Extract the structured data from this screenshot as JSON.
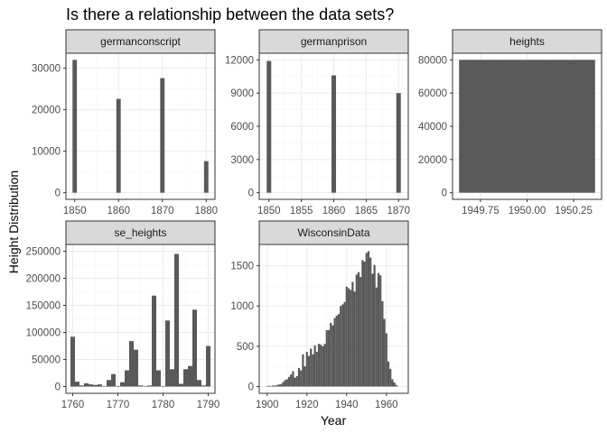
{
  "chart_data": {
    "type": "bar",
    "title": "Is there a relationship between the data sets?",
    "xlabel": "Year",
    "ylabel": "Height Distribution",
    "colors": {
      "bar": "#595959",
      "panel_border": "#333333",
      "strip_fill": "#d9d9d9",
      "grid_major": "#ebebeb",
      "grid_minor": "#f5f5f5"
    },
    "panels": [
      {
        "name": "germanconscript",
        "xlim": [
          1848,
          1882
        ],
        "ylim": [
          -1600,
          33600
        ],
        "x_ticks": [
          1850,
          1860,
          1870,
          1880
        ],
        "x_tick_labels": [
          "1850",
          "1860",
          "1870",
          "1880"
        ],
        "y_ticks": [
          0,
          10000,
          20000,
          30000
        ],
        "y_tick_labels": [
          "0",
          "10000",
          "20000",
          "30000"
        ],
        "bin_width": 1,
        "x": [
          1850,
          1860,
          1870,
          1880
        ],
        "values": [
          32000,
          22600,
          27600,
          7600
        ]
      },
      {
        "name": "germanprison",
        "xlim": [
          1848.5,
          1871.5
        ],
        "ylim": [
          -600,
          12600
        ],
        "x_ticks": [
          1850,
          1855,
          1860,
          1865,
          1870
        ],
        "x_tick_labels": [
          "1850",
          "1855",
          "1860",
          "1865",
          "1870"
        ],
        "y_ticks": [
          0,
          3000,
          6000,
          9000,
          12000
        ],
        "y_tick_labels": [
          "0",
          "3000",
          "6000",
          "9000",
          "12000"
        ],
        "bin_width": 0.7,
        "x": [
          1850,
          1860,
          1870
        ],
        "values": [
          11900,
          10600,
          9000
        ]
      },
      {
        "name": "heights",
        "xlim": [
          1949.6,
          1950.4
        ],
        "ylim": [
          -4000,
          84000
        ],
        "x_ticks": [
          1949.75,
          1950.0,
          1950.25
        ],
        "x_tick_labels": [
          "1949.75",
          "1950.00",
          "1950.25"
        ],
        "y_ticks": [
          0,
          20000,
          40000,
          60000,
          80000
        ],
        "y_tick_labels": [
          "0",
          "20000",
          "40000",
          "60000",
          "80000"
        ],
        "bin_width": 0.73,
        "x": [
          1950.0
        ],
        "values": [
          80000
        ]
      },
      {
        "name": "se_heights",
        "xlim": [
          1758.5,
          1791.5
        ],
        "ylim": [
          -12500,
          262500
        ],
        "x_ticks": [
          1760,
          1770,
          1780,
          1790
        ],
        "x_tick_labels": [
          "1760",
          "1770",
          "1780",
          "1790"
        ],
        "y_ticks": [
          0,
          50000,
          100000,
          150000,
          200000,
          250000
        ],
        "y_tick_labels": [
          "0",
          "50000",
          "100000",
          "150000",
          "200000",
          "250000"
        ],
        "bin_width": 1,
        "x": [
          1760,
          1761,
          1762,
          1763,
          1764,
          1765,
          1766,
          1767,
          1768,
          1769,
          1770,
          1771,
          1772,
          1773,
          1774,
          1775,
          1776,
          1777,
          1778,
          1779,
          1780,
          1781,
          1782,
          1783,
          1784,
          1785,
          1786,
          1787,
          1788,
          1789,
          1790
        ],
        "values": [
          92000,
          9000,
          2000,
          6000,
          4000,
          3000,
          4000,
          1000,
          12000,
          23000,
          1000,
          8000,
          30000,
          84000,
          68000,
          2000,
          1000,
          2000,
          168000,
          30000,
          1000,
          122000,
          32000,
          245000,
          5000,
          32000,
          38000,
          142000,
          12000,
          2000,
          75000
        ]
      },
      {
        "name": "WisconsinData",
        "xlim": [
          1896,
          1971
        ],
        "ylim": [
          -84,
          1764
        ],
        "x_ticks": [
          1900,
          1920,
          1940,
          1960
        ],
        "x_tick_labels": [
          "1900",
          "1920",
          "1940",
          "1960"
        ],
        "y_ticks": [
          0,
          500,
          1000,
          1500
        ],
        "y_tick_labels": [
          "0",
          "500",
          "1000",
          "1500"
        ],
        "bin_width": 1,
        "x": [
          1900,
          1901,
          1902,
          1903,
          1904,
          1905,
          1906,
          1907,
          1908,
          1909,
          1910,
          1911,
          1912,
          1913,
          1914,
          1915,
          1916,
          1917,
          1918,
          1919,
          1920,
          1921,
          1922,
          1923,
          1924,
          1925,
          1926,
          1927,
          1928,
          1929,
          1930,
          1931,
          1932,
          1933,
          1934,
          1935,
          1936,
          1937,
          1938,
          1939,
          1940,
          1941,
          1942,
          1943,
          1944,
          1945,
          1946,
          1947,
          1948,
          1949,
          1950,
          1951,
          1952,
          1953,
          1954,
          1955,
          1956,
          1957,
          1958,
          1959,
          1960,
          1961,
          1962,
          1963,
          1964,
          1965
        ],
        "values": [
          5,
          10,
          5,
          15,
          10,
          20,
          25,
          30,
          55,
          80,
          90,
          120,
          150,
          190,
          110,
          130,
          230,
          200,
          400,
          250,
          430,
          380,
          470,
          400,
          510,
          430,
          530,
          520,
          500,
          530,
          700,
          700,
          790,
          760,
          850,
          880,
          900,
          1000,
          1020,
          1050,
          1240,
          1220,
          1200,
          1300,
          1180,
          1390,
          1420,
          1360,
          1570,
          1550,
          1660,
          1680,
          1600,
          1400,
          1510,
          1230,
          1410,
          1380,
          1060,
          840,
          660,
          310,
          220,
          90,
          50,
          20
        ]
      }
    ]
  }
}
